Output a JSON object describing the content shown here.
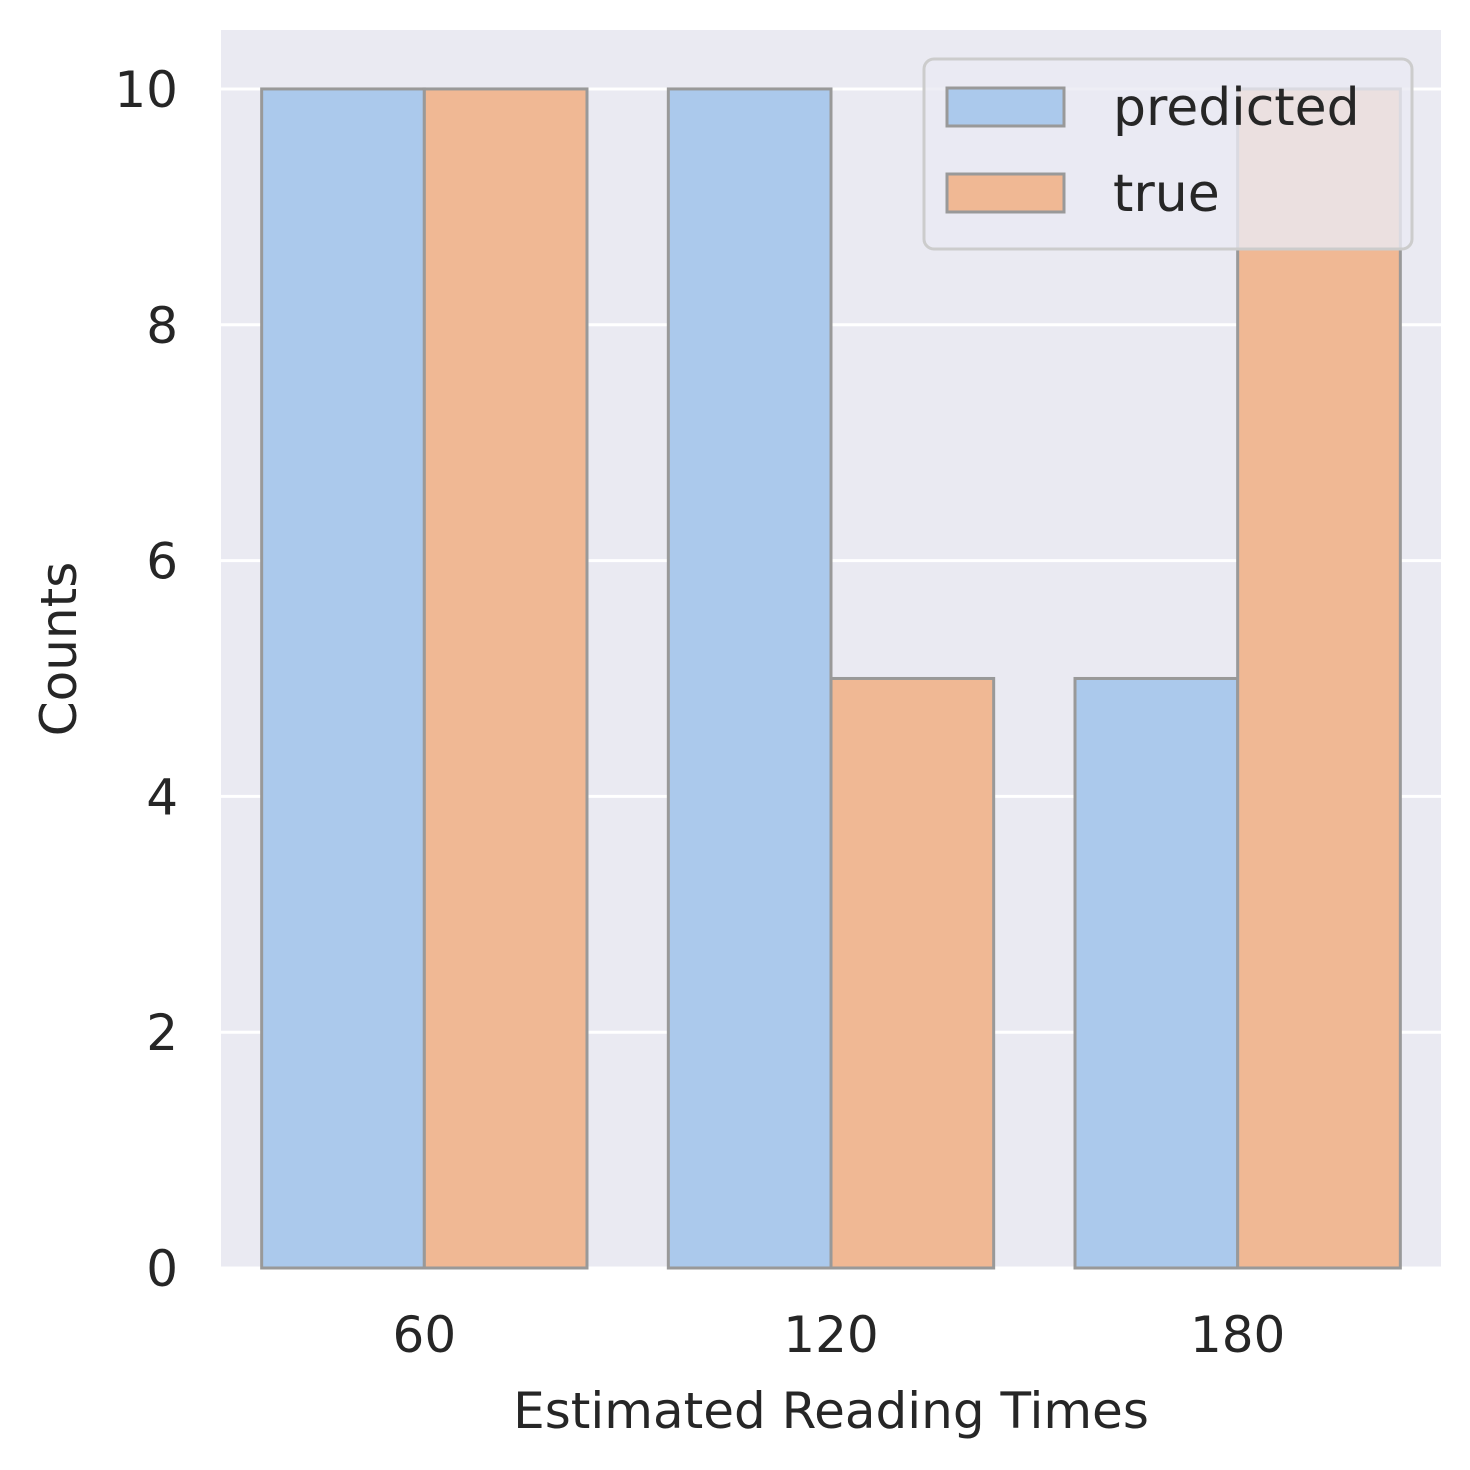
{
  "chart_data": {
    "type": "bar",
    "categories": [
      "60",
      "120",
      "180"
    ],
    "series": [
      {
        "name": "predicted",
        "values": [
          10,
          10,
          5
        ],
        "color": "#abc9ec"
      },
      {
        "name": "true",
        "values": [
          10,
          5,
          10
        ],
        "color": "#f0b894"
      }
    ],
    "xlabel": "Estimated Reading Times",
    "ylabel": "Counts",
    "ylim": [
      0,
      10.5
    ],
    "yticks": [
      0,
      2,
      4,
      6,
      8,
      10
    ],
    "grid": true,
    "legend_position": "top-right",
    "colors": {
      "plot_background": "#eaeaf2",
      "gridline": "#ffffff",
      "bar_edge": "#999999"
    }
  }
}
